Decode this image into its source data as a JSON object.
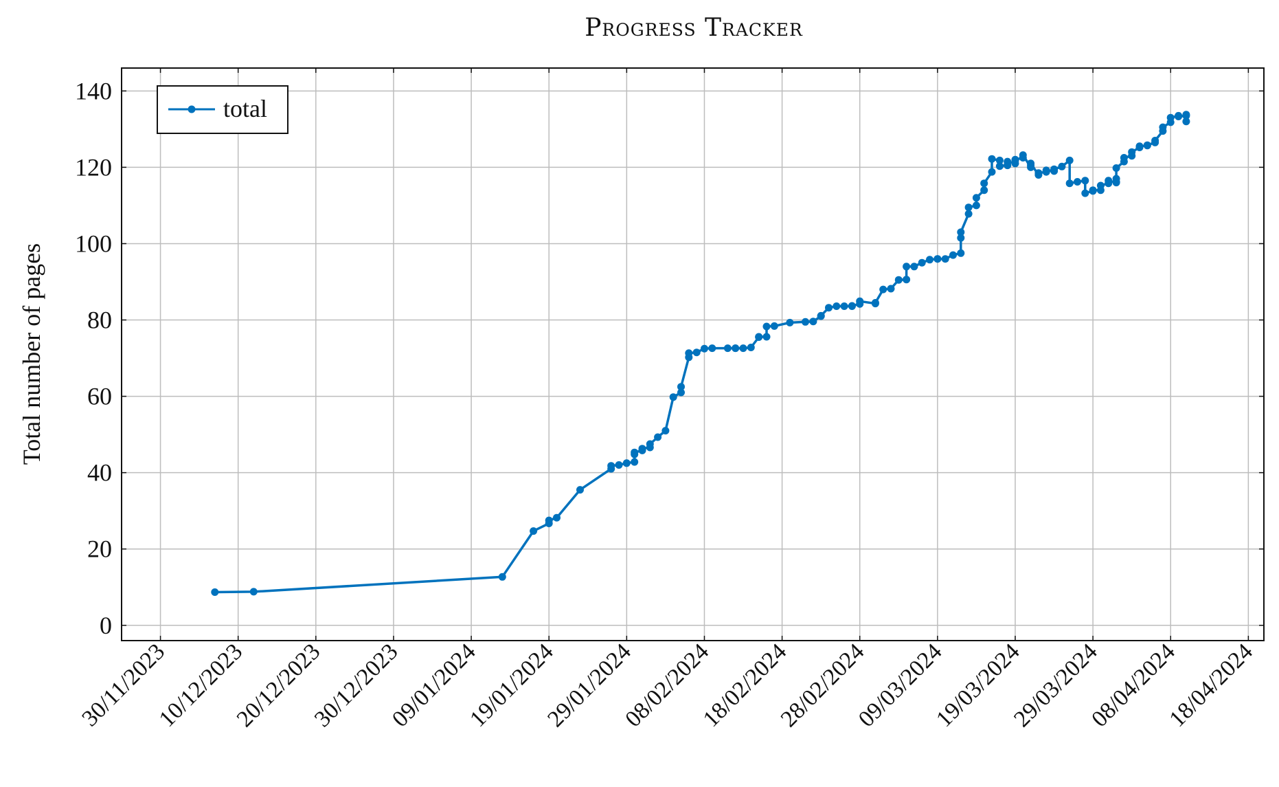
{
  "chart_data": {
    "type": "line",
    "title": "Progress Tracker",
    "xlabel": "",
    "ylabel": "Total number of pages",
    "xlim": [
      "2023-11-25",
      "2024-04-20"
    ],
    "ylim": [
      -4,
      146
    ],
    "x_ticks": [
      "30/11/2023",
      "10/12/2023",
      "20/12/2023",
      "30/12/2023",
      "09/01/2024",
      "19/01/2024",
      "29/01/2024",
      "08/02/2024",
      "18/02/2024",
      "28/02/2024",
      "09/03/2024",
      "19/03/2024",
      "29/03/2024",
      "08/04/2024",
      "18/04/2024"
    ],
    "y_ticks": [
      0,
      20,
      40,
      60,
      80,
      100,
      120,
      140
    ],
    "grid": true,
    "legend": {
      "position": "top-left",
      "entries": [
        "total"
      ]
    },
    "series": [
      {
        "name": "total",
        "color": "#0072bd",
        "marker": "circle",
        "points": [
          [
            "2023-12-07",
            8.7
          ],
          [
            "2023-12-12",
            8.8
          ],
          [
            "2024-01-13",
            12.7
          ],
          [
            "2024-01-17",
            24.7
          ],
          [
            "2024-01-19",
            26.7
          ],
          [
            "2024-01-19",
            27.5
          ],
          [
            "2024-01-20",
            28.2
          ],
          [
            "2024-01-23",
            35.5
          ],
          [
            "2024-01-27",
            41.0
          ],
          [
            "2024-01-27",
            41.8
          ],
          [
            "2024-01-28",
            42.0
          ],
          [
            "2024-01-29",
            42.5
          ],
          [
            "2024-01-30",
            42.8
          ],
          [
            "2024-01-30",
            44.8
          ],
          [
            "2024-01-30",
            45.3
          ],
          [
            "2024-01-31",
            45.8
          ],
          [
            "2024-01-31",
            46.3
          ],
          [
            "2024-02-01",
            46.6
          ],
          [
            "2024-02-01",
            47.5
          ],
          [
            "2024-02-02",
            49.3
          ],
          [
            "2024-02-03",
            51.0
          ],
          [
            "2024-02-04",
            59.8
          ],
          [
            "2024-02-05",
            61.0
          ],
          [
            "2024-02-05",
            62.5
          ],
          [
            "2024-02-06",
            70.2
          ],
          [
            "2024-02-06",
            71.3
          ],
          [
            "2024-02-07",
            71.5
          ],
          [
            "2024-02-08",
            72.5
          ],
          [
            "2024-02-09",
            72.6
          ],
          [
            "2024-02-11",
            72.6
          ],
          [
            "2024-02-12",
            72.6
          ],
          [
            "2024-02-12",
            72.6
          ],
          [
            "2024-02-13",
            72.6
          ],
          [
            "2024-02-14",
            72.8
          ],
          [
            "2024-02-15",
            75.5
          ],
          [
            "2024-02-15",
            75.6
          ],
          [
            "2024-02-16",
            75.6
          ],
          [
            "2024-02-16",
            78.3
          ],
          [
            "2024-02-17",
            78.4
          ],
          [
            "2024-02-19",
            79.3
          ],
          [
            "2024-02-21",
            79.5
          ],
          [
            "2024-02-22",
            79.6
          ],
          [
            "2024-02-23",
            81.0
          ],
          [
            "2024-02-23",
            81.1
          ],
          [
            "2024-02-24",
            83.2
          ],
          [
            "2024-02-25",
            83.6
          ],
          [
            "2024-02-26",
            83.6
          ],
          [
            "2024-02-27",
            83.6
          ],
          [
            "2024-02-27",
            83.7
          ],
          [
            "2024-02-28",
            84.2
          ],
          [
            "2024-02-28",
            84.9
          ],
          [
            "2024-03-01",
            84.3
          ],
          [
            "2024-03-01",
            84.5
          ],
          [
            "2024-03-02",
            88.0
          ],
          [
            "2024-03-03",
            88.2
          ],
          [
            "2024-03-04",
            90.5
          ],
          [
            "2024-03-05",
            90.6
          ],
          [
            "2024-03-05",
            94.0
          ],
          [
            "2024-03-06",
            94.0
          ],
          [
            "2024-03-07",
            95.0
          ],
          [
            "2024-03-08",
            95.8
          ],
          [
            "2024-03-09",
            96.0
          ],
          [
            "2024-03-09",
            96.0
          ],
          [
            "2024-03-10",
            96.0
          ],
          [
            "2024-03-11",
            97.0
          ],
          [
            "2024-03-12",
            97.5
          ],
          [
            "2024-03-12",
            101.5
          ],
          [
            "2024-03-12",
            103.0
          ],
          [
            "2024-03-13",
            107.8
          ],
          [
            "2024-03-13",
            109.5
          ],
          [
            "2024-03-14",
            110.0
          ],
          [
            "2024-03-14",
            112.0
          ],
          [
            "2024-03-15",
            114.0
          ],
          [
            "2024-03-15",
            115.8
          ],
          [
            "2024-03-16",
            118.8
          ],
          [
            "2024-03-16",
            122.2
          ],
          [
            "2024-03-17",
            121.8
          ],
          [
            "2024-03-17",
            120.3
          ],
          [
            "2024-03-18",
            120.6
          ],
          [
            "2024-03-18",
            120.5
          ],
          [
            "2024-03-18",
            121.5
          ],
          [
            "2024-03-19",
            121.0
          ],
          [
            "2024-03-19",
            121.8
          ],
          [
            "2024-03-19",
            122.0
          ],
          [
            "2024-03-20",
            122.5
          ],
          [
            "2024-03-20",
            123.2
          ],
          [
            "2024-03-21",
            120.0
          ],
          [
            "2024-03-21",
            120.5
          ],
          [
            "2024-03-21",
            121.0
          ],
          [
            "2024-03-22",
            118.0
          ],
          [
            "2024-03-22",
            118.5
          ],
          [
            "2024-03-23",
            118.8
          ],
          [
            "2024-03-23",
            119.2
          ],
          [
            "2024-03-24",
            119.0
          ],
          [
            "2024-03-24",
            119.5
          ],
          [
            "2024-03-25",
            120.2
          ],
          [
            "2024-03-26",
            121.8
          ],
          [
            "2024-03-26",
            115.8
          ],
          [
            "2024-03-27",
            116.2
          ],
          [
            "2024-03-28",
            116.5
          ],
          [
            "2024-03-28",
            113.2
          ],
          [
            "2024-03-29",
            113.8
          ],
          [
            "2024-03-29",
            114.0
          ],
          [
            "2024-03-30",
            114.0
          ],
          [
            "2024-03-30",
            115.2
          ],
          [
            "2024-03-31",
            115.8
          ],
          [
            "2024-03-31",
            116.5
          ],
          [
            "2024-04-01",
            116.0
          ],
          [
            "2024-04-01",
            117.0
          ],
          [
            "2024-04-01",
            116.2
          ],
          [
            "2024-04-01",
            119.8
          ],
          [
            "2024-04-02",
            121.5
          ],
          [
            "2024-04-02",
            122.5
          ],
          [
            "2024-04-03",
            123.0
          ],
          [
            "2024-04-03",
            124.0
          ],
          [
            "2024-04-04",
            125.2
          ],
          [
            "2024-04-04",
            125.5
          ],
          [
            "2024-04-05",
            125.7
          ],
          [
            "2024-04-05",
            125.8
          ],
          [
            "2024-04-06",
            126.5
          ],
          [
            "2024-04-06",
            127.0
          ],
          [
            "2024-04-07",
            129.5
          ],
          [
            "2024-04-07",
            130.5
          ],
          [
            "2024-04-08",
            131.8
          ],
          [
            "2024-04-08",
            133.0
          ],
          [
            "2024-04-09",
            133.5
          ],
          [
            "2024-04-09",
            133.3
          ],
          [
            "2024-04-10",
            133.5
          ],
          [
            "2024-04-10",
            133.8
          ],
          [
            "2024-04-10",
            132.0
          ]
        ]
      }
    ]
  }
}
